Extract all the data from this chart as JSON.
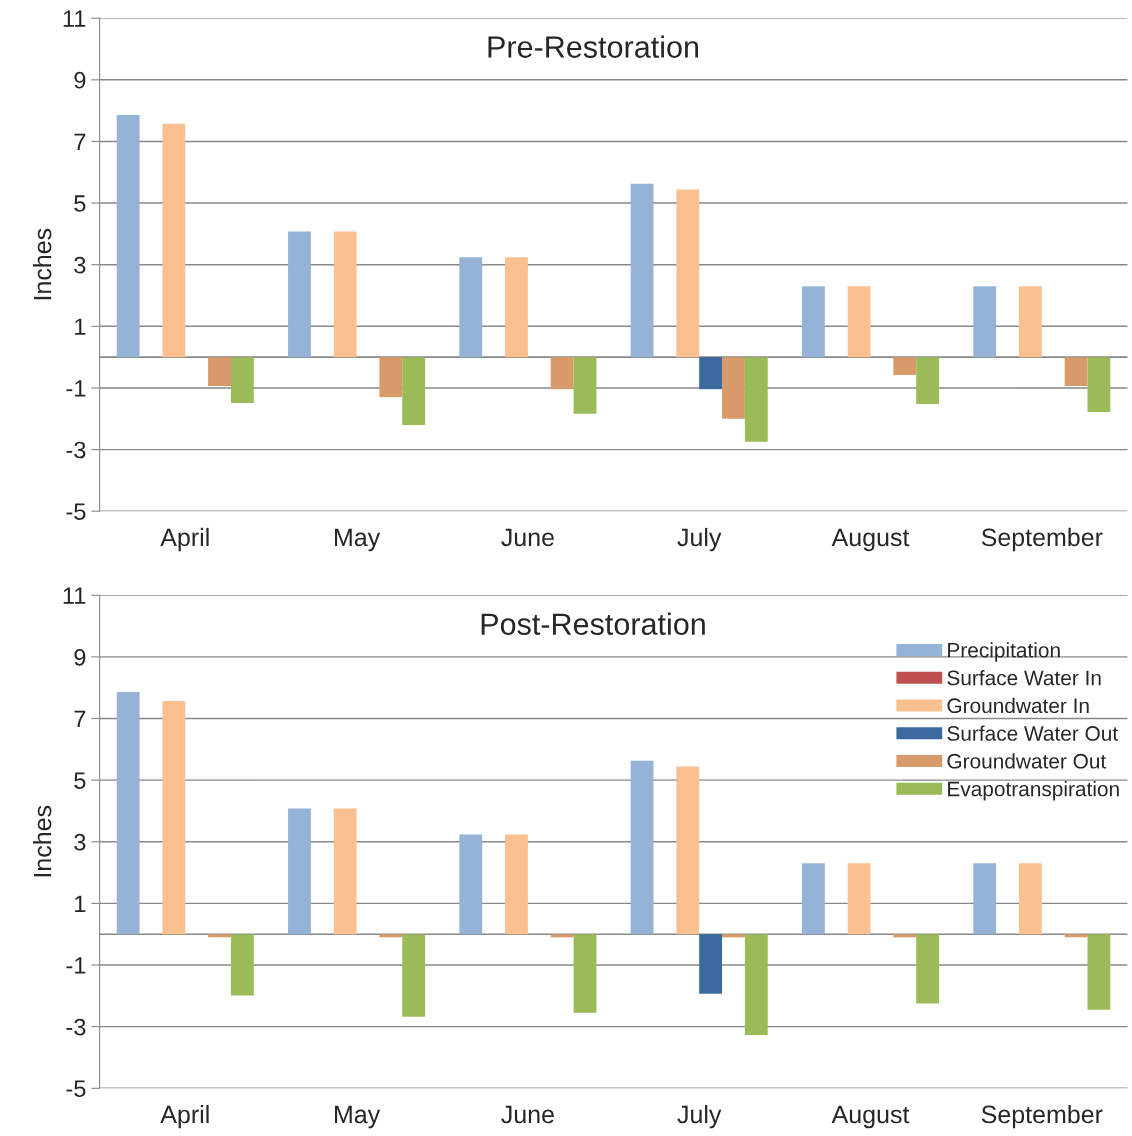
{
  "chart_data": [
    {
      "type": "bar",
      "title": "Pre-Restoration",
      "ylabel": "Inches",
      "categories": [
        "April",
        "May",
        "June",
        "July",
        "August",
        "September"
      ],
      "ylim": [
        -5,
        11
      ],
      "yticks": [
        -5,
        -3,
        -1,
        1,
        3,
        5,
        7,
        9,
        11
      ],
      "grid": "y",
      "legend": false,
      "ref_lines": [
        {
          "axis": "y",
          "value": 0
        }
      ],
      "series": [
        {
          "color": "#95b3d7",
          "values": [
            7.86,
            4.08,
            3.24,
            5.63,
            2.3,
            2.3
          ]
        },
        {
          "values": [
            0,
            0,
            0,
            0,
            0,
            0
          ]
        },
        {
          "color": "#fac090",
          "values": [
            7.57,
            4.08,
            3.24,
            5.44,
            2.3,
            2.3
          ]
        },
        {
          "color": "#3c6a9e",
          "values": [
            0,
            0,
            0,
            -1.04,
            0,
            0
          ]
        },
        {
          "color": "#d89a6a",
          "values": [
            -0.94,
            -1.3,
            -1.04,
            -2.0,
            -0.58,
            -0.94
          ]
        },
        {
          "color": "#9bbb59",
          "values": [
            -1.49,
            -2.2,
            -1.84,
            -2.75,
            -1.52,
            -1.78
          ]
        }
      ]
    },
    {
      "type": "bar",
      "title": "Post-Restoration",
      "ylabel": "Inches",
      "categories": [
        "April",
        "May",
        "June",
        "July",
        "August",
        "September"
      ],
      "ylim": [
        -5,
        11
      ],
      "yticks": [
        -5,
        -3,
        -1,
        1,
        3,
        5,
        7,
        9,
        11
      ],
      "grid": "y",
      "legend": "top right",
      "ref_lines": [
        {
          "axis": "y",
          "value": 0
        }
      ],
      "series": [
        {
          "name": "Precipitation",
          "color": "#95b3d7",
          "values": [
            7.86,
            4.08,
            3.24,
            5.63,
            2.3,
            2.3
          ]
        },
        {
          "name": "Surface Water In",
          "color": "#c0504d",
          "values": [
            0,
            0,
            0,
            0,
            0,
            0
          ]
        },
        {
          "name": "Groundwater In",
          "color": "#fac090",
          "values": [
            7.57,
            4.08,
            3.24,
            5.44,
            2.3,
            2.3
          ]
        },
        {
          "name": "Surface Water Out",
          "color": "#3c6a9e",
          "values": [
            0,
            0,
            0,
            -1.93,
            0,
            0
          ]
        },
        {
          "name": "Groundwater Out",
          "color": "#d89a6a",
          "values": [
            -0.1,
            -0.1,
            -0.1,
            -0.1,
            -0.1,
            -0.1
          ]
        },
        {
          "name": "Evapotranspiration",
          "color": "#9bbb59",
          "values": [
            -1.99,
            -2.68,
            -2.55,
            -3.27,
            -2.25,
            -2.45
          ]
        }
      ]
    }
  ]
}
